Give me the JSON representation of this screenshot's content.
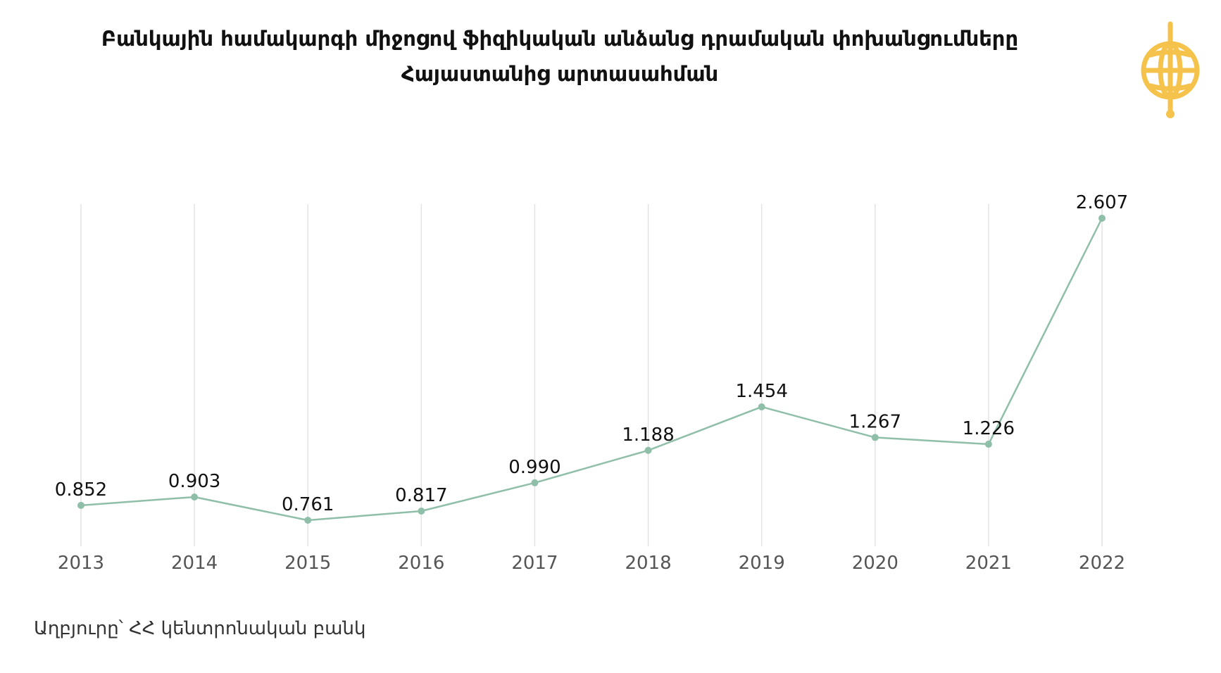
{
  "title": {
    "line1": "Բանկային համակարգի միջոցով ֆիզիկական անձանց դրամական փոխանցումները",
    "line2": "Հայաստանից արտասահման"
  },
  "source": "Աղբյուրը՝ ՀՀ կենտրոնական բանկ",
  "logo": {
    "icon": "globe-logo-icon",
    "color": "#F5C24B"
  },
  "chart_data": {
    "type": "line",
    "title": "Բանկային համակարգի միջոցով ֆիզիկական անձանց դրամական փոխանցումները Հայաստանից արտասահման",
    "x": [
      "2013",
      "2014",
      "2015",
      "2016",
      "2017",
      "2018",
      "2019",
      "2020",
      "2021",
      "2022"
    ],
    "series": [
      {
        "values": [
          0.852,
          0.903,
          0.761,
          0.817,
          0.99,
          1.188,
          1.454,
          1.267,
          1.226,
          2.607
        ],
        "labels": [
          "0.852",
          "0.903",
          "0.761",
          "0.817",
          "0.990",
          "1.188",
          "1.454",
          "1.267",
          "1.226",
          "2.607"
        ],
        "color": "#8fbfa8"
      }
    ],
    "ylim": [
      0,
      2.8
    ],
    "grid": "vertical",
    "legend": "none",
    "xlabel": "",
    "ylabel": ""
  }
}
